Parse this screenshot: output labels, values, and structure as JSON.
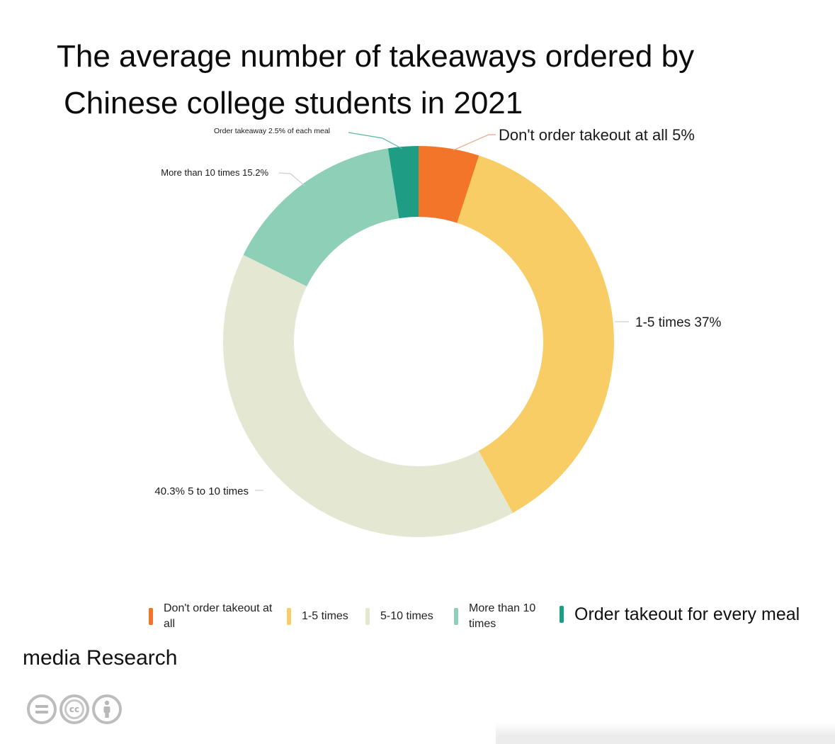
{
  "title": {
    "line1": "The average number of takeaways ordered by",
    "line2": "Chinese college students in 2021"
  },
  "chart_data": {
    "type": "pie",
    "donut": true,
    "unit": "%",
    "slices": [
      {
        "key": "none",
        "label": "Don't order takeout at all 5%",
        "legend": "Don't order takeout at all",
        "value": 5,
        "color": "#f2752a"
      },
      {
        "key": "one_five",
        "label": "1-5 times 37%",
        "legend": "1-5 times",
        "value": 37,
        "color": "#f9cd66"
      },
      {
        "key": "five_ten",
        "label": "40.3% 5 to 10 times",
        "legend": "5-10 times",
        "value": 40.3,
        "color": "#e4e8d3"
      },
      {
        "key": "more_ten",
        "label": "More than 10 times 15.2%",
        "legend": "More than 10 times",
        "value": 15.2,
        "color": "#8ecfb8"
      },
      {
        "key": "every_meal",
        "label": "Order takeaway 2.5% of each meal",
        "legend": "Order takeout for every meal",
        "value": 2.5,
        "color": "#1f9d84"
      }
    ]
  },
  "source": "media Research",
  "license_icons": [
    "no-derivatives-icon",
    "creative-commons-icon",
    "attribution-icon"
  ],
  "license_glyphs": {
    "cc": "cc"
  }
}
